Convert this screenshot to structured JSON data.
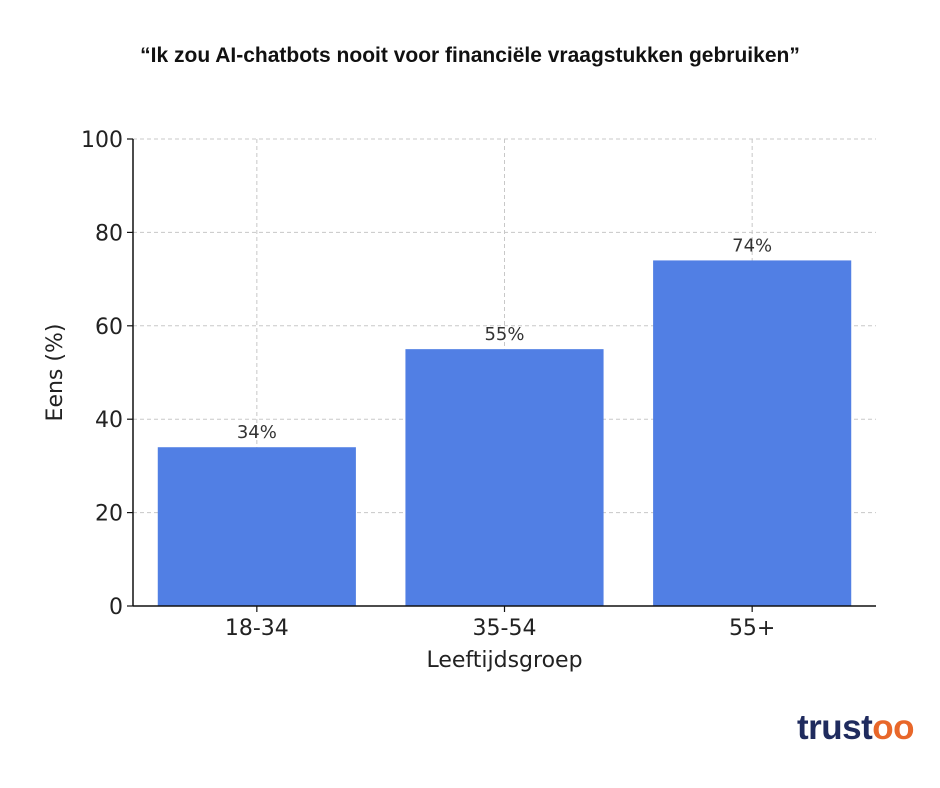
{
  "header": {
    "title": "“Ik zou AI-chatbots nooit voor financiële vraagstukken gebruiken”"
  },
  "chart_data": {
    "type": "bar",
    "categories": [
      "18-34",
      "35-54",
      "55+"
    ],
    "values": [
      34,
      55,
      74
    ],
    "value_labels": [
      "34%",
      "55%",
      "74%"
    ],
    "title": "“Ik zou AI-chatbots nooit voor financiële vraagstukken gebruiken”",
    "xlabel": "Leeftijdsgroep",
    "ylabel": "Eens (%)",
    "ylim": [
      0,
      100
    ],
    "yticks": [
      0,
      20,
      40,
      60,
      80,
      100
    ],
    "grid": true,
    "bar_color": "#517fe4"
  },
  "brand": {
    "logo_text_main": "trust",
    "logo_text_accent": "oo",
    "primary_color": "#1f2b5e",
    "accent_color": "#e8672a"
  }
}
